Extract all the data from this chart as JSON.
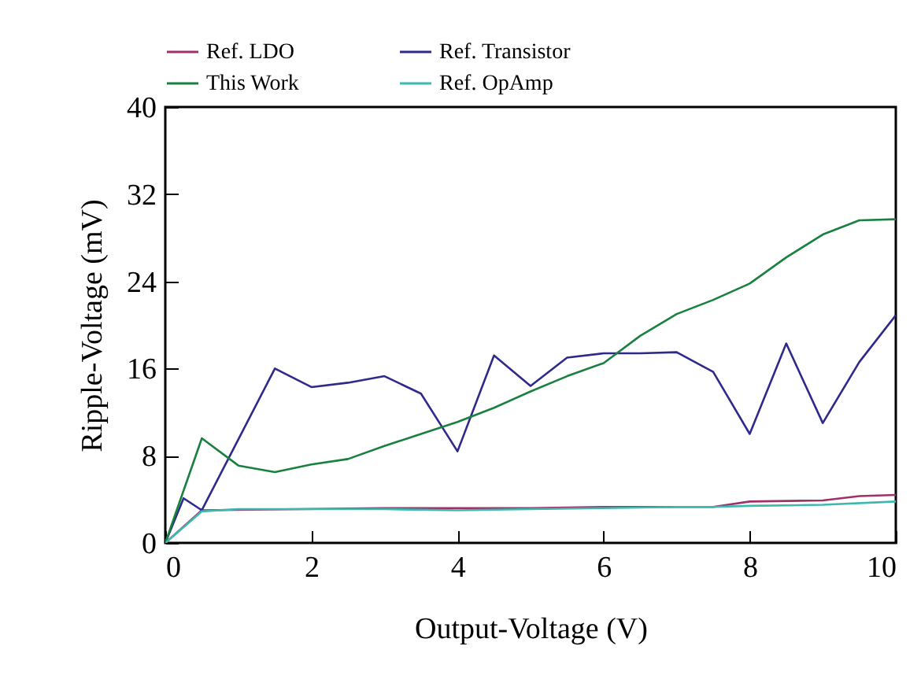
{
  "chart_data": {
    "type": "line",
    "xlabel": "Output-Voltage (V)",
    "ylabel": "Ripple-Voltage (mV)",
    "xlim": [
      0,
      10
    ],
    "xticks": [
      0,
      2,
      4,
      6,
      8,
      10
    ],
    "ylim": [
      0,
      40
    ],
    "yticks": [
      0,
      8,
      16,
      24,
      32,
      40
    ],
    "grid": false,
    "legend": "top",
    "marker": "none",
    "line_style": "solid",
    "series": [
      {
        "name": "Ref. LDO",
        "color": "#a0306a",
        "x": [
          0,
          0.5,
          3,
          4,
          5,
          6,
          7.5,
          8,
          9,
          9.5,
          10
        ],
        "values": [
          0,
          3.0,
          3.2,
          3.2,
          3.2,
          3.3,
          3.3,
          3.8,
          3.9,
          4.3,
          4.4
        ]
      },
      {
        "name": "Ref. Transistor",
        "color": "#2e2a8c",
        "x": [
          0,
          0.25,
          0.5,
          1.5,
          2,
          2.5,
          3,
          3.5,
          4,
          4.5,
          5,
          5.5,
          6,
          6.5,
          7,
          7.5,
          8,
          8.5,
          9,
          9.5,
          10
        ],
        "values": [
          0,
          4.1,
          3.0,
          16.0,
          14.3,
          14.7,
          15.3,
          13.7,
          8.4,
          17.2,
          14.4,
          17.0,
          17.4,
          17.4,
          17.5,
          15.7,
          10.0,
          18.3,
          11.0,
          16.6,
          20.9
        ]
      },
      {
        "name": "This Work",
        "color": "#1a8040",
        "x": [
          0,
          0.5,
          1,
          1.5,
          2,
          2.5,
          3,
          3.5,
          4,
          4.5,
          5,
          5.5,
          6,
          6.5,
          7,
          7.5,
          8,
          8.5,
          9,
          9.5,
          10
        ],
        "values": [
          0,
          9.6,
          7.1,
          6.5,
          7.2,
          7.7,
          8.9,
          10.0,
          11.1,
          12.4,
          13.9,
          15.3,
          16.5,
          19.0,
          21.0,
          22.3,
          23.8,
          26.2,
          28.3,
          29.6,
          29.7
        ]
      },
      {
        "name": "Ref. OpAmp",
        "color": "#3cb8b0",
        "x": [
          0,
          0.5,
          1,
          2,
          3,
          4,
          5,
          6,
          7,
          7.5,
          8,
          9,
          10
        ],
        "values": [
          0,
          2.9,
          3.1,
          3.1,
          3.1,
          3.0,
          3.1,
          3.2,
          3.3,
          3.3,
          3.4,
          3.5,
          3.8
        ]
      }
    ]
  }
}
